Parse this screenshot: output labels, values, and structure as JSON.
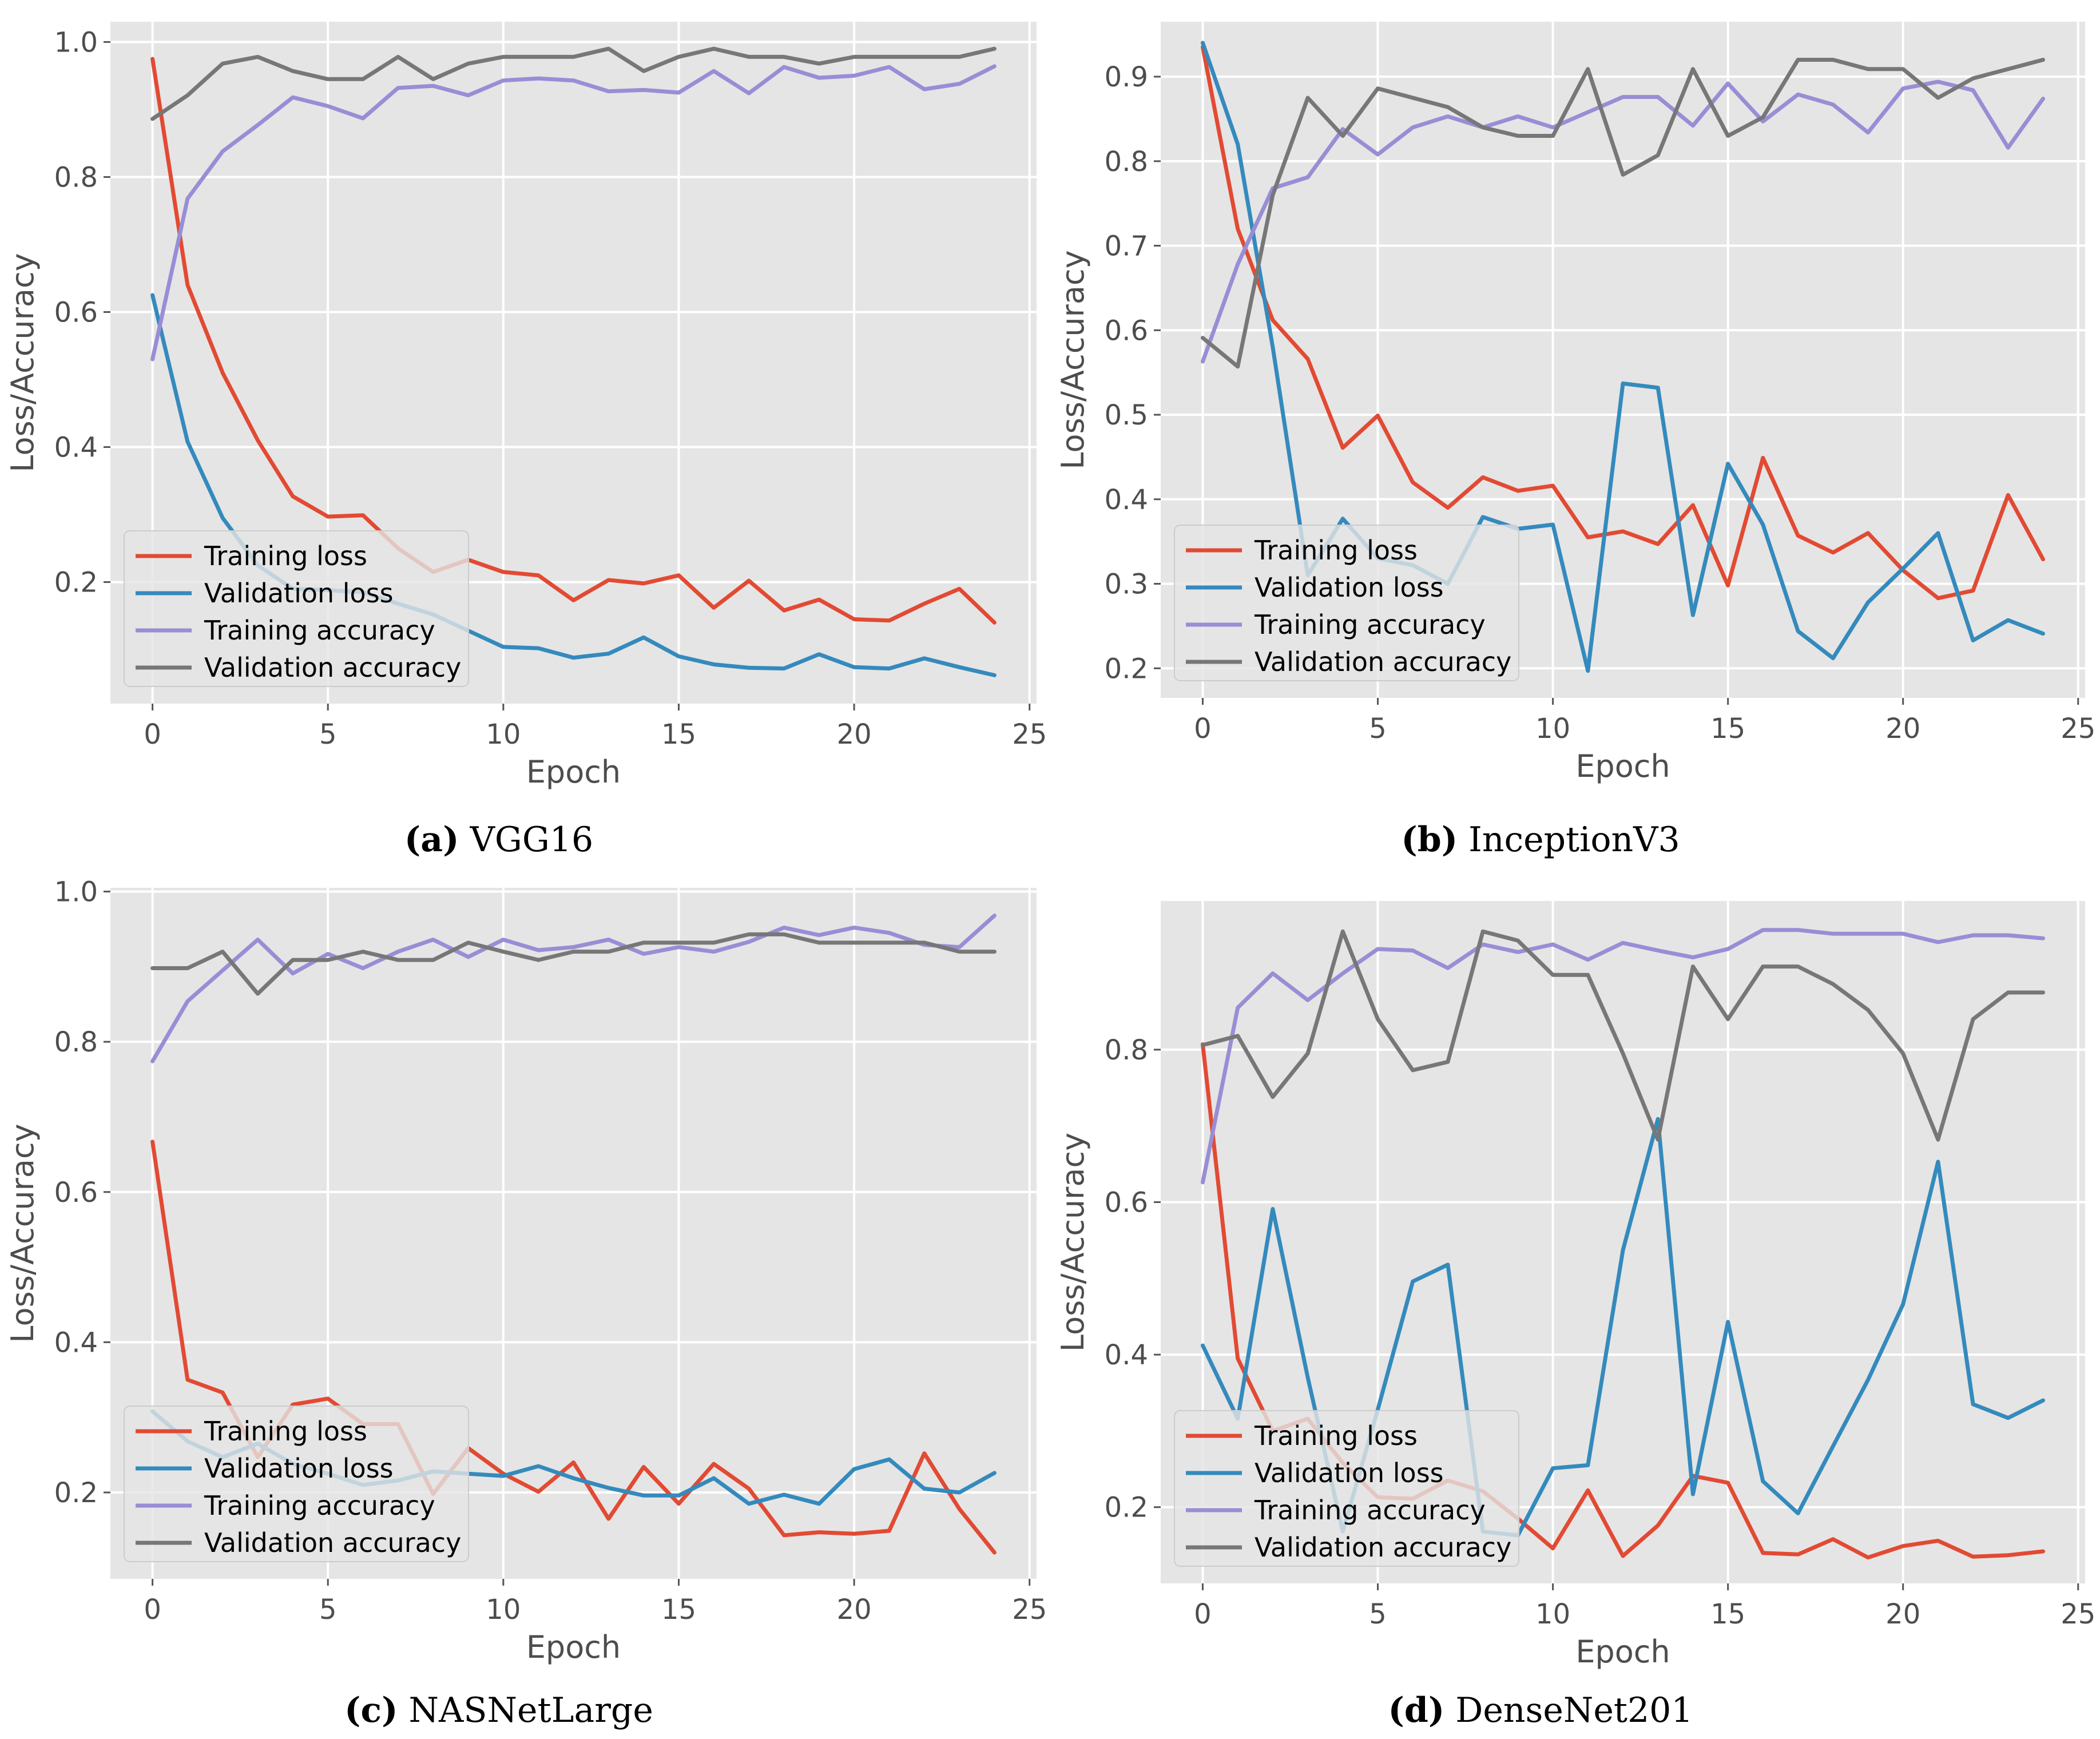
{
  "colors": {
    "panel_bg": "#e5e5e5",
    "grid": "#ffffff",
    "training_loss": "#e24a33",
    "validation_loss": "#348abd",
    "training_accuracy": "#988ed5",
    "validation_accuracy": "#777777",
    "tick_text": "#555555"
  },
  "chart_data": [
    {
      "type": "line",
      "panel": "a",
      "caption_letter": "(a)",
      "caption_name": "VGG16",
      "xlabel": "Epoch",
      "ylabel": "Loss/Accuracy",
      "xlim": [
        -1.2,
        25.2
      ],
      "ylim": [
        0.02,
        1.03
      ],
      "xticks": [
        0,
        5,
        10,
        15,
        20,
        25
      ],
      "yticks": [
        0.2,
        0.4,
        0.6,
        0.8,
        1.0
      ],
      "ytick_labels": [
        "0.2",
        "0.4",
        "0.6",
        "0.8",
        "1.0"
      ],
      "legend_position": "lower-left",
      "x": [
        0,
        1,
        2,
        3,
        4,
        5,
        6,
        7,
        8,
        9,
        10,
        11,
        12,
        13,
        14,
        15,
        16,
        17,
        18,
        19,
        20,
        21,
        22,
        23,
        24
      ],
      "series": [
        {
          "name": "Training loss",
          "color_key": "training_loss",
          "values": [
            0.975,
            0.64,
            0.51,
            0.41,
            0.327,
            0.297,
            0.299,
            0.25,
            0.215,
            0.233,
            0.215,
            0.21,
            0.173,
            0.203,
            0.198,
            0.21,
            0.162,
            0.202,
            0.158,
            0.174,
            0.145,
            0.143,
            0.168,
            0.19,
            0.14
          ]
        },
        {
          "name": "Validation loss",
          "color_key": "validation_loss",
          "values": [
            0.625,
            0.408,
            0.295,
            0.225,
            0.19,
            0.188,
            0.185,
            0.168,
            0.152,
            0.128,
            0.104,
            0.102,
            0.088,
            0.094,
            0.118,
            0.09,
            0.078,
            0.073,
            0.072,
            0.093,
            0.074,
            0.072,
            0.087,
            0.074,
            0.062
          ]
        },
        {
          "name": "Training accuracy",
          "color_key": "training_accuracy",
          "values": [
            0.53,
            0.768,
            0.838,
            0.877,
            0.918,
            0.905,
            0.887,
            0.932,
            0.935,
            0.921,
            0.943,
            0.946,
            0.943,
            0.927,
            0.929,
            0.925,
            0.957,
            0.924,
            0.963,
            0.947,
            0.95,
            0.963,
            0.93,
            0.938,
            0.964
          ]
        },
        {
          "name": "Validation accuracy",
          "color_key": "validation_accuracy",
          "values": [
            0.886,
            0.921,
            0.968,
            0.978,
            0.957,
            0.945,
            0.945,
            0.978,
            0.945,
            0.968,
            0.978,
            0.978,
            0.978,
            0.99,
            0.957,
            0.978,
            0.99,
            0.978,
            0.978,
            0.968,
            0.978,
            0.978,
            0.978,
            0.978,
            0.99
          ]
        }
      ]
    },
    {
      "type": "line",
      "panel": "b",
      "caption_letter": "(b)",
      "caption_name": "InceptionV3",
      "xlabel": "Epoch",
      "ylabel": "Loss/Accuracy",
      "xlim": [
        -1.2,
        25.2
      ],
      "ylim": [
        0.165,
        0.965
      ],
      "xticks": [
        0,
        5,
        10,
        15,
        20,
        25
      ],
      "yticks": [
        0.2,
        0.3,
        0.4,
        0.5,
        0.6,
        0.7,
        0.8,
        0.9
      ],
      "ytick_labels": [
        "0.2",
        "0.3",
        "0.4",
        "0.5",
        "0.6",
        "0.7",
        "0.8",
        "0.9"
      ],
      "legend_position": "lower-left",
      "x": [
        0,
        1,
        2,
        3,
        4,
        5,
        6,
        7,
        8,
        9,
        10,
        11,
        12,
        13,
        14,
        15,
        16,
        17,
        18,
        19,
        20,
        21,
        22,
        23,
        24
      ],
      "series": [
        {
          "name": "Training loss",
          "color_key": "training_loss",
          "values": [
            0.935,
            0.72,
            0.612,
            0.566,
            0.461,
            0.499,
            0.42,
            0.39,
            0.426,
            0.41,
            0.416,
            0.355,
            0.362,
            0.347,
            0.393,
            0.298,
            0.449,
            0.357,
            0.337,
            0.36,
            0.316,
            0.283,
            0.292,
            0.405,
            0.329
          ]
        },
        {
          "name": "Validation loss",
          "color_key": "validation_loss",
          "values": [
            0.94,
            0.82,
            0.58,
            0.31,
            0.377,
            0.33,
            0.322,
            0.3,
            0.379,
            0.365,
            0.37,
            0.197,
            0.537,
            0.532,
            0.263,
            0.442,
            0.37,
            0.244,
            0.212,
            0.278,
            0.318,
            0.36,
            0.233,
            0.257,
            0.241
          ]
        },
        {
          "name": "Training accuracy",
          "color_key": "training_accuracy",
          "values": [
            0.563,
            0.678,
            0.768,
            0.781,
            0.838,
            0.808,
            0.84,
            0.853,
            0.84,
            0.853,
            0.84,
            0.858,
            0.876,
            0.876,
            0.842,
            0.892,
            0.847,
            0.879,
            0.867,
            0.834,
            0.886,
            0.894,
            0.884,
            0.816,
            0.874
          ]
        },
        {
          "name": "Validation accuracy",
          "color_key": "validation_accuracy",
          "values": [
            0.591,
            0.557,
            0.76,
            0.875,
            0.83,
            0.886,
            0.875,
            0.864,
            0.84,
            0.83,
            0.83,
            0.909,
            0.784,
            0.807,
            0.909,
            0.83,
            0.852,
            0.92,
            0.92,
            0.909,
            0.909,
            0.875,
            0.898,
            0.909,
            0.92
          ]
        }
      ]
    },
    {
      "type": "line",
      "panel": "c",
      "caption_letter": "(c)",
      "caption_name": "NASNetLarge",
      "xlabel": "Epoch",
      "ylabel": "Loss/Accuracy",
      "xlim": [
        -1.2,
        25.2
      ],
      "ylim": [
        0.085,
        1.005
      ],
      "xticks": [
        0,
        5,
        10,
        15,
        20,
        25
      ],
      "yticks": [
        0.2,
        0.4,
        0.6,
        0.8,
        1.0
      ],
      "ytick_labels": [
        "0.2",
        "0.4",
        "0.6",
        "0.8",
        "1.0"
      ],
      "legend_position": "lower-left",
      "x": [
        0,
        1,
        2,
        3,
        4,
        5,
        6,
        7,
        8,
        9,
        10,
        11,
        12,
        13,
        14,
        15,
        16,
        17,
        18,
        19,
        20,
        21,
        22,
        23,
        24
      ],
      "series": [
        {
          "name": "Training loss",
          "color_key": "training_loss",
          "values": [
            0.667,
            0.35,
            0.333,
            0.247,
            0.317,
            0.325,
            0.291,
            0.291,
            0.198,
            0.259,
            0.225,
            0.201,
            0.24,
            0.165,
            0.234,
            0.185,
            0.238,
            0.205,
            0.143,
            0.147,
            0.145,
            0.149,
            0.252,
            0.178,
            0.12
          ]
        },
        {
          "name": "Validation loss",
          "color_key": "validation_loss",
          "values": [
            0.308,
            0.268,
            0.247,
            0.265,
            0.238,
            0.225,
            0.21,
            0.216,
            0.228,
            0.225,
            0.222,
            0.235,
            0.219,
            0.206,
            0.196,
            0.196,
            0.219,
            0.185,
            0.197,
            0.185,
            0.231,
            0.244,
            0.205,
            0.2,
            0.226
          ]
        },
        {
          "name": "Training accuracy",
          "color_key": "training_accuracy",
          "values": [
            0.774,
            0.854,
            0.895,
            0.936,
            0.891,
            0.917,
            0.898,
            0.92,
            0.936,
            0.913,
            0.936,
            0.922,
            0.926,
            0.936,
            0.917,
            0.926,
            0.92,
            0.933,
            0.952,
            0.942,
            0.952,
            0.945,
            0.929,
            0.926,
            0.968
          ]
        },
        {
          "name": "Validation accuracy",
          "color_key": "validation_accuracy",
          "values": [
            0.898,
            0.898,
            0.92,
            0.864,
            0.909,
            0.909,
            0.92,
            0.909,
            0.909,
            0.932,
            0.92,
            0.909,
            0.92,
            0.92,
            0.932,
            0.932,
            0.932,
            0.943,
            0.943,
            0.932,
            0.932,
            0.932,
            0.932,
            0.92,
            0.92
          ]
        }
      ]
    },
    {
      "type": "line",
      "panel": "d",
      "caption_letter": "(d)",
      "caption_name": "DenseNet201",
      "xlabel": "Epoch",
      "ylabel": "Loss/Accuracy",
      "xlim": [
        -1.2,
        25.2
      ],
      "ylim": [
        0.1,
        0.995
      ],
      "xticks": [
        0,
        5,
        10,
        15,
        20,
        25
      ],
      "yticks": [
        0.2,
        0.4,
        0.6,
        0.8
      ],
      "ytick_labels": [
        "0.2",
        "0.4",
        "0.6",
        "0.8"
      ],
      "legend_position": "lower-left",
      "x": [
        0,
        1,
        2,
        3,
        4,
        5,
        6,
        7,
        8,
        9,
        10,
        11,
        12,
        13,
        14,
        15,
        16,
        17,
        18,
        19,
        20,
        21,
        22,
        23,
        24
      ],
      "series": [
        {
          "name": "Training loss",
          "color_key": "training_loss",
          "values": [
            0.807,
            0.395,
            0.3,
            0.316,
            0.258,
            0.213,
            0.211,
            0.235,
            0.221,
            0.185,
            0.146,
            0.222,
            0.136,
            0.176,
            0.241,
            0.232,
            0.14,
            0.138,
            0.158,
            0.134,
            0.149,
            0.156,
            0.135,
            0.137,
            0.142
          ]
        },
        {
          "name": "Validation loss",
          "color_key": "validation_loss",
          "values": [
            0.412,
            0.316,
            0.591,
            0.37,
            0.168,
            0.328,
            0.496,
            0.518,
            0.168,
            0.163,
            0.251,
            0.255,
            0.537,
            0.709,
            0.217,
            0.443,
            0.234,
            0.192,
            0.28,
            0.367,
            0.466,
            0.653,
            0.335,
            0.317,
            0.34
          ]
        },
        {
          "name": "Training accuracy",
          "color_key": "training_accuracy",
          "values": [
            0.626,
            0.855,
            0.9,
            0.865,
            0.9,
            0.932,
            0.93,
            0.907,
            0.938,
            0.928,
            0.938,
            0.918,
            0.94,
            0.93,
            0.921,
            0.932,
            0.957,
            0.957,
            0.952,
            0.952,
            0.952,
            0.941,
            0.95,
            0.95,
            0.946
          ]
        },
        {
          "name": "Validation accuracy",
          "color_key": "validation_accuracy",
          "values": [
            0.806,
            0.818,
            0.738,
            0.795,
            0.955,
            0.84,
            0.773,
            0.784,
            0.955,
            0.943,
            0.898,
            0.898,
            0.795,
            0.682,
            0.909,
            0.84,
            0.909,
            0.909,
            0.886,
            0.852,
            0.795,
            0.682,
            0.84,
            0.875,
            0.875
          ]
        }
      ]
    }
  ]
}
